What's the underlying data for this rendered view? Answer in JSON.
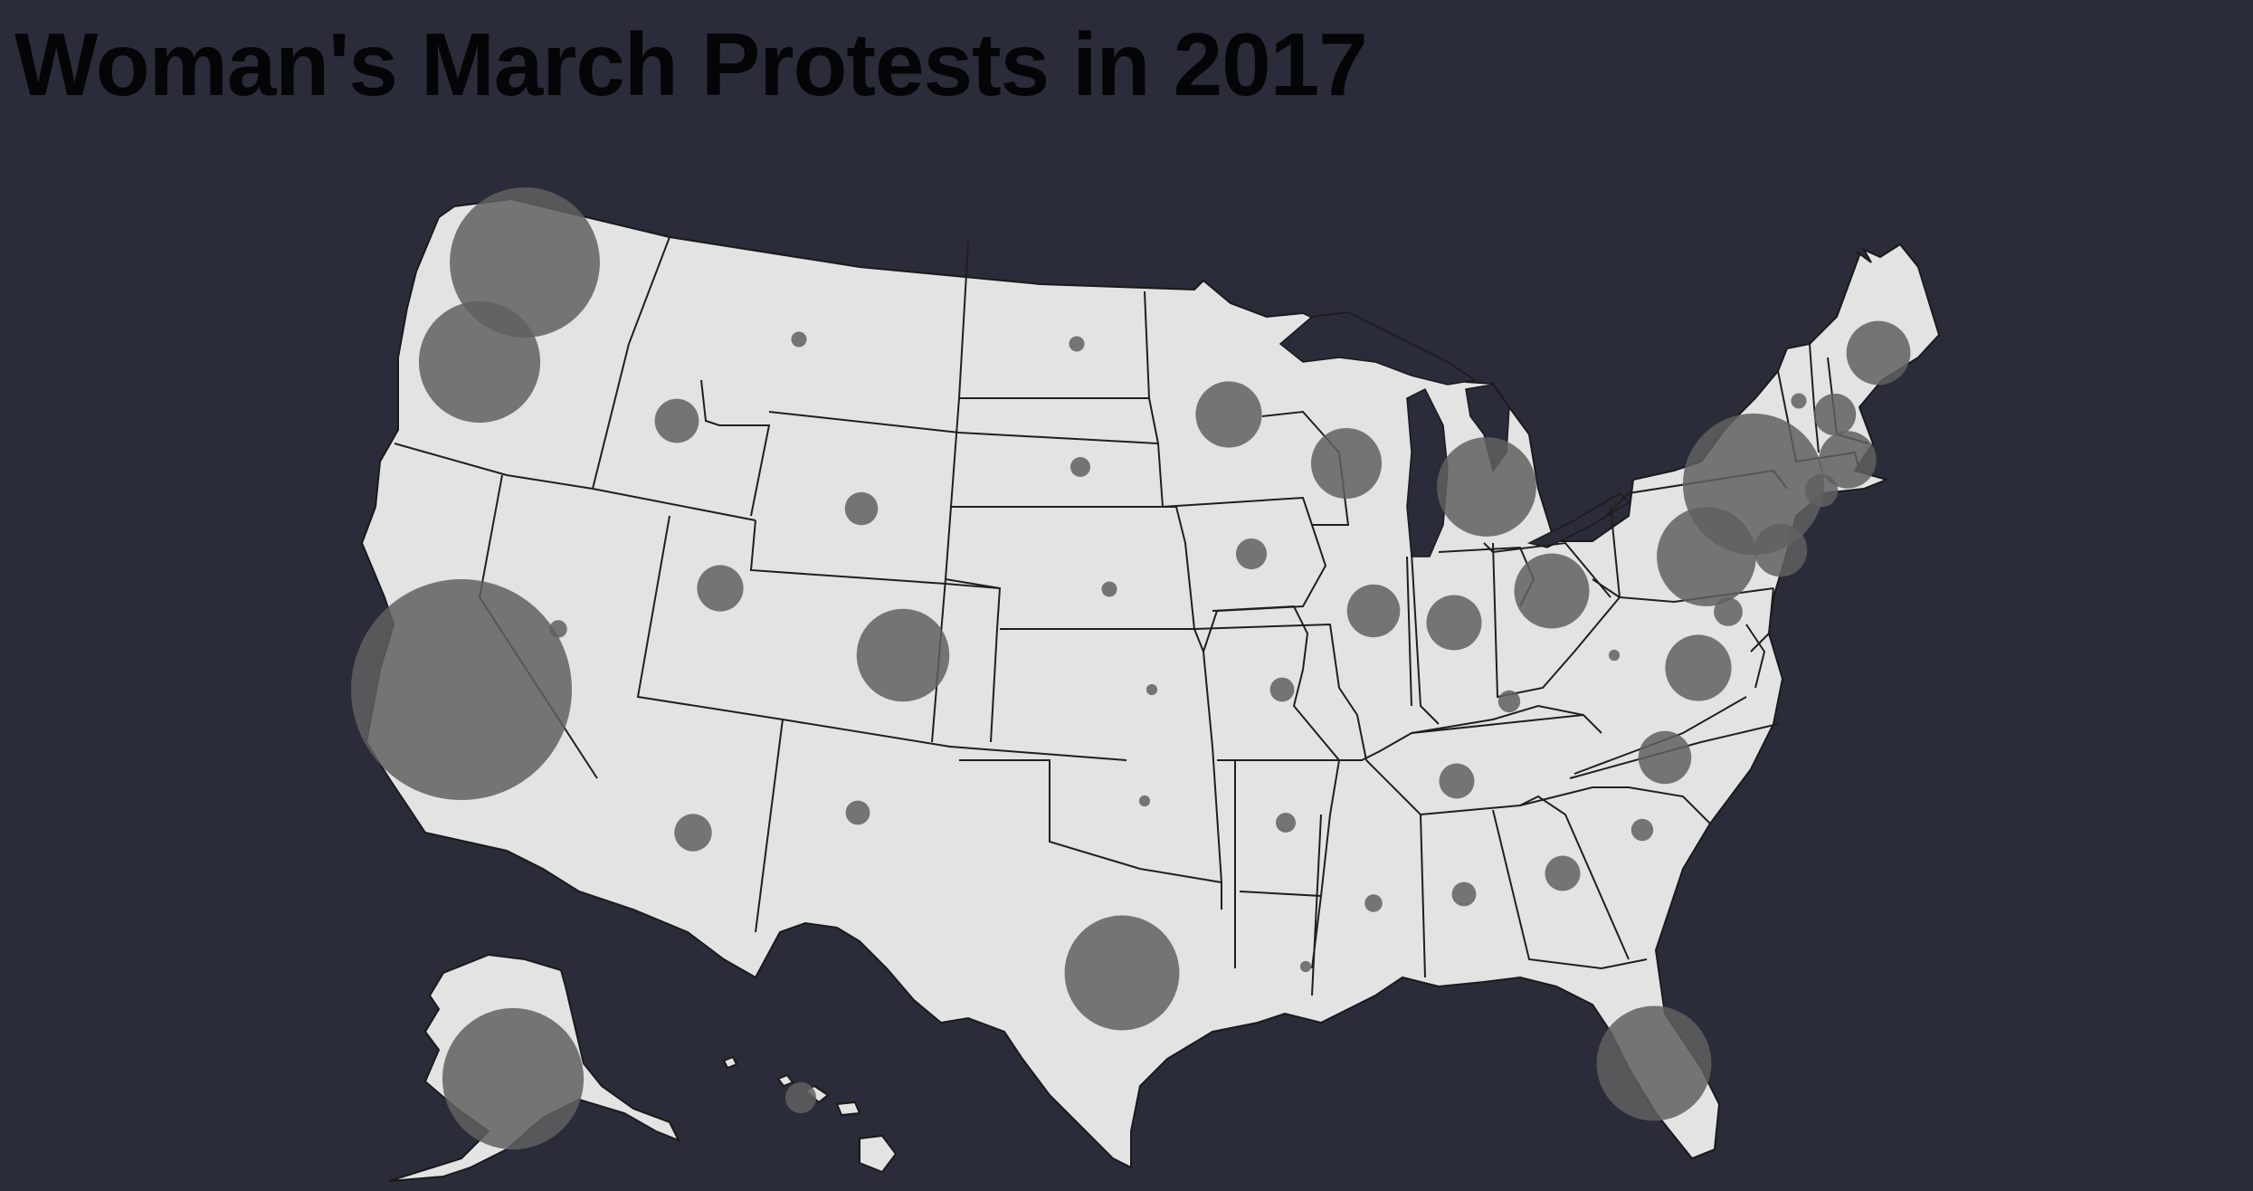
{
  "title": "Woman's March Protests in 2017",
  "colors": {
    "background": "#2a2c39",
    "land": "#e3e3e3",
    "bubble": "#606060",
    "title": "#050507"
  },
  "map_data": {
    "type": "proportional-symbol map",
    "region": "United States",
    "bubbles": [
      {
        "state": "WA",
        "size": 0.68
      },
      {
        "state": "OR",
        "size": 0.55
      },
      {
        "state": "CA",
        "size": 1.0
      },
      {
        "state": "ID",
        "size": 0.2
      },
      {
        "state": "NV",
        "size": 0.08
      },
      {
        "state": "MT",
        "size": 0.07
      },
      {
        "state": "WY",
        "size": 0.15
      },
      {
        "state": "UT",
        "size": 0.21
      },
      {
        "state": "CO",
        "size": 0.42
      },
      {
        "state": "AZ",
        "size": 0.17
      },
      {
        "state": "NM",
        "size": 0.11
      },
      {
        "state": "ND",
        "size": 0.07
      },
      {
        "state": "SD",
        "size": 0.09
      },
      {
        "state": "NE",
        "size": 0.07
      },
      {
        "state": "KS",
        "size": 0.05
      },
      {
        "state": "OK",
        "size": 0.05
      },
      {
        "state": "TX",
        "size": 0.52
      },
      {
        "state": "MN",
        "size": 0.3
      },
      {
        "state": "IA",
        "size": 0.14
      },
      {
        "state": "MO",
        "size": 0.11
      },
      {
        "state": "AR",
        "size": 0.09
      },
      {
        "state": "LA",
        "size": 0.05
      },
      {
        "state": "WI",
        "size": 0.32
      },
      {
        "state": "IL",
        "size": 0.24
      },
      {
        "state": "MS",
        "size": 0.08
      },
      {
        "state": "MI",
        "size": 0.45
      },
      {
        "state": "IN",
        "size": 0.25
      },
      {
        "state": "KY",
        "size": 0.1
      },
      {
        "state": "TN",
        "size": 0.16
      },
      {
        "state": "AL",
        "size": 0.11
      },
      {
        "state": "GA",
        "size": 0.16
      },
      {
        "state": "FL",
        "size": 0.52
      },
      {
        "state": "OH",
        "size": 0.34
      },
      {
        "state": "WV",
        "size": 0.05
      },
      {
        "state": "PA",
        "size": 0.45
      },
      {
        "state": "NY",
        "size": 0.64
      },
      {
        "state": "VA",
        "size": 0.3
      },
      {
        "state": "NC",
        "size": 0.24
      },
      {
        "state": "SC",
        "size": 0.1
      },
      {
        "state": "MD",
        "size": 0.13
      },
      {
        "state": "NJ",
        "size": 0.24
      },
      {
        "state": "ME",
        "size": 0.29
      },
      {
        "state": "NH",
        "size": 0.19
      },
      {
        "state": "VT",
        "size": 0.07
      },
      {
        "state": "MA",
        "size": 0.26
      },
      {
        "state": "CT",
        "size": 0.15
      },
      {
        "state": "AK",
        "size": 0.64
      },
      {
        "state": "HI",
        "size": 0.14
      }
    ]
  }
}
